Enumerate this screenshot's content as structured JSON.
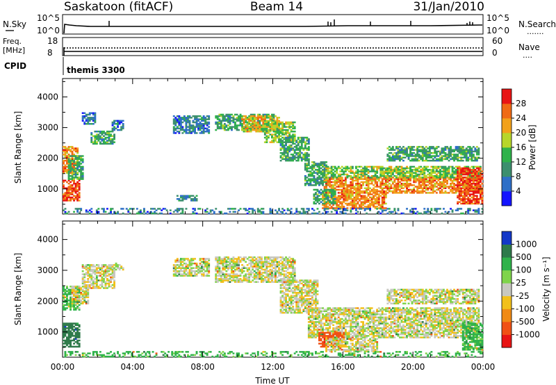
{
  "header": {
    "station": "Saskatoon (fitACF)",
    "beam": "Beam 14",
    "date": "31/Jan/2010"
  },
  "top_strip": {
    "nsky": {
      "label": "N.Sky",
      "ticks_left": [
        "10^5",
        "10^0"
      ],
      "ticks_right": [
        "10^5",
        "10^0"
      ],
      "right_label": "N.Search",
      "right_legend_marker": "......."
    },
    "freq": {
      "label_line1": "Freq.",
      "label_line2": "[MHz]",
      "ticks_left": [
        "18",
        "8"
      ],
      "ticks_right": [
        "60",
        "0"
      ],
      "right_label": "Nave",
      "right_legend_marker": "...."
    },
    "cpid": {
      "label": "CPID",
      "value": "themis 3300"
    }
  },
  "chart_data": [
    {
      "type": "heatmap",
      "name": "power-panel",
      "ylabel": "Slant Range [km]",
      "xlabel": "",
      "x_ticks": [
        "00:00",
        "04:00",
        "08:00",
        "12:00",
        "16:00",
        "20:00",
        "00:00"
      ],
      "y_ticks": [
        1000,
        2000,
        3000,
        4000
      ],
      "xlim_hours": [
        0,
        24
      ],
      "ylim_km": [
        180,
        4600
      ],
      "colorbar": {
        "label": "Power [dB]",
        "ticks": [
          4,
          8,
          12,
          16,
          20,
          24,
          28
        ],
        "bins": [
          0,
          4,
          8,
          12,
          16,
          20,
          24,
          28,
          32
        ],
        "colors": [
          "#1414ff",
          "#2e6fc7",
          "#3c8f6e",
          "#2fb24a",
          "#b7d62a",
          "#f2a11a",
          "#f06a14",
          "#e81414"
        ]
      },
      "regions": [
        {
          "t0": 0.0,
          "t1": 0.8,
          "r0": 1500,
          "r1": 2400,
          "level": 24
        },
        {
          "t0": 0.0,
          "t1": 0.9,
          "r0": 600,
          "r1": 1300,
          "level": 28
        },
        {
          "t0": 0.3,
          "t1": 1.2,
          "r0": 1300,
          "r1": 2100,
          "level": 12
        },
        {
          "t0": 1.1,
          "t1": 1.9,
          "r0": 3100,
          "r1": 3500,
          "level": 8
        },
        {
          "t0": 1.6,
          "t1": 3.0,
          "r0": 2450,
          "r1": 2900,
          "level": 12
        },
        {
          "t0": 2.8,
          "t1": 3.5,
          "r0": 2900,
          "r1": 3250,
          "level": 8
        },
        {
          "t0": 6.3,
          "t1": 8.3,
          "r0": 2800,
          "r1": 3400,
          "level": 8
        },
        {
          "t0": 8.7,
          "t1": 12.0,
          "r0": 2900,
          "r1": 3450,
          "level": 12
        },
        {
          "t0": 10.2,
          "t1": 12.3,
          "r0": 2850,
          "r1": 3400,
          "level": 20
        },
        {
          "t0": 11.5,
          "t1": 13.2,
          "r0": 2500,
          "r1": 3200,
          "level": 16
        },
        {
          "t0": 12.4,
          "t1": 14.0,
          "r0": 1900,
          "r1": 2700,
          "level": 12
        },
        {
          "t0": 13.8,
          "t1": 15.0,
          "r0": 1100,
          "r1": 1900,
          "level": 12
        },
        {
          "t0": 14.9,
          "t1": 23.8,
          "r0": 850,
          "r1": 1400,
          "level": 24
        },
        {
          "t0": 15.0,
          "t1": 23.9,
          "r0": 1350,
          "r1": 1750,
          "level": 16
        },
        {
          "t0": 14.8,
          "t1": 18.5,
          "r0": 350,
          "r1": 850,
          "level": 24
        },
        {
          "t0": 14.3,
          "t1": 15.5,
          "r0": 500,
          "r1": 1000,
          "level": 12
        },
        {
          "t0": 18.5,
          "t1": 23.8,
          "r0": 1900,
          "r1": 2400,
          "level": 12
        },
        {
          "t0": 22.5,
          "t1": 24.0,
          "r0": 500,
          "r1": 1700,
          "level": 28
        },
        {
          "t0": 6.5,
          "t1": 7.6,
          "r0": 600,
          "r1": 800,
          "level": 8
        },
        {
          "t0": 0.0,
          "t1": 24.0,
          "r0": 180,
          "r1": 350,
          "level": 8
        }
      ]
    },
    {
      "type": "heatmap",
      "name": "velocity-panel",
      "ylabel": "Slant Range [km]",
      "xlabel": "Time UT",
      "x_ticks": [
        "00:00",
        "04:00",
        "08:00",
        "12:00",
        "16:00",
        "20:00",
        "00:00"
      ],
      "y_ticks": [
        1000,
        2000,
        3000,
        4000
      ],
      "xlim_hours": [
        0,
        24
      ],
      "ylim_km": [
        180,
        4600
      ],
      "colorbar": {
        "label": "Velocity [m s⁻¹]",
        "ticks": [
          1000,
          500,
          100,
          25,
          -25,
          -100,
          -500,
          -1000
        ],
        "colors": [
          "#1438c8",
          "#2e7a4a",
          "#2fb24a",
          "#7fd44a",
          "#c8c8c0",
          "#f2c01a",
          "#f08a14",
          "#f05014",
          "#e81414"
        ]
      },
      "regions": [
        {
          "t0": 0.0,
          "t1": 0.9,
          "r0": 1700,
          "r1": 2500,
          "level": 100
        },
        {
          "t0": 0.0,
          "t1": 0.9,
          "r0": 500,
          "r1": 1300,
          "level": 500
        },
        {
          "t0": 0.5,
          "t1": 1.5,
          "r0": 1900,
          "r1": 2500,
          "level": 0
        },
        {
          "t0": 1.1,
          "t1": 3.0,
          "r0": 2400,
          "r1": 3200,
          "level": 0
        },
        {
          "t0": 3.0,
          "t1": 3.5,
          "r0": 3000,
          "r1": 3250,
          "level": 0
        },
        {
          "t0": 6.3,
          "t1": 8.3,
          "r0": 2800,
          "r1": 3400,
          "level": 0
        },
        {
          "t0": 8.7,
          "t1": 13.2,
          "r0": 2600,
          "r1": 3450,
          "level": 0
        },
        {
          "t0": 12.4,
          "t1": 14.5,
          "r0": 1600,
          "r1": 2700,
          "level": 0
        },
        {
          "t0": 14.0,
          "t1": 23.8,
          "r0": 800,
          "r1": 1800,
          "level": 0
        },
        {
          "t0": 14.6,
          "t1": 16.0,
          "r0": 500,
          "r1": 1000,
          "level": -500
        },
        {
          "t0": 15.0,
          "t1": 18.0,
          "r0": 350,
          "r1": 800,
          "level": 0
        },
        {
          "t0": 18.5,
          "t1": 23.8,
          "r0": 1900,
          "r1": 2400,
          "level": 0
        },
        {
          "t0": 22.8,
          "t1": 24.0,
          "r0": 400,
          "r1": 1300,
          "level": 100
        },
        {
          "t0": 0.0,
          "t1": 24.0,
          "r0": 180,
          "r1": 350,
          "level": 100
        }
      ]
    }
  ]
}
